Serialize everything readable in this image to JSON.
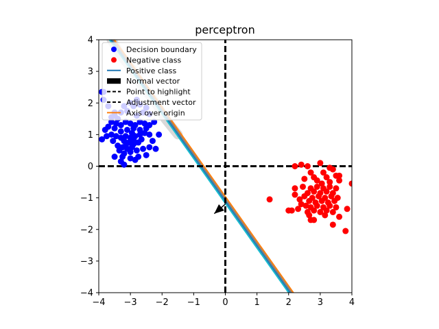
{
  "chart_data": {
    "type": "scatter",
    "title": "perceptron",
    "xlabel": "",
    "ylabel": "",
    "xlim": [
      -4,
      4
    ],
    "ylim": [
      -4,
      4
    ],
    "xticks": [
      -4,
      -3,
      -2,
      -1,
      0,
      1,
      2,
      3,
      4
    ],
    "yticks": [
      -4,
      -3,
      -2,
      -1,
      0,
      1,
      2,
      3,
      4
    ],
    "grid": false,
    "legend_position": "top-left",
    "legend": [
      {
        "label": "Decision boundary",
        "marker": "dot",
        "color": "#0000ff"
      },
      {
        "label": "Negative class",
        "marker": "dot",
        "color": "#ff0000"
      },
      {
        "label": "Positive class",
        "marker": "line",
        "color": "#1f77b4"
      },
      {
        "label": "Normal vector",
        "marker": "patch",
        "color": "#000000"
      },
      {
        "label": "Point to highlight",
        "marker": "dashed",
        "color": "#000000"
      },
      {
        "label": "Adjustment vector",
        "marker": "dashed",
        "color": "#000000"
      },
      {
        "label": "Axis over origin",
        "marker": "line",
        "color": "#ff7f0e"
      }
    ],
    "colors": {
      "blue": "#0000ff",
      "red": "#ff0000",
      "line_blue": "#1f77b4",
      "line_orange": "#ff7f0e",
      "line_teal": "#17becf",
      "line_grey": "#7f7f7f"
    },
    "series": [
      {
        "color": "#0000ff",
        "points": [
          [
            -3.9,
            2.35
          ],
          [
            -3.85,
            2.1
          ],
          [
            -3.7,
            1.9
          ],
          [
            -3.6,
            1.55
          ],
          [
            -3.5,
            1.6
          ],
          [
            -3.4,
            1.5
          ],
          [
            -3.3,
            1.7
          ],
          [
            -3.2,
            1.9
          ],
          [
            -3.1,
            1.75
          ],
          [
            -3.0,
            2.0
          ],
          [
            -2.9,
            1.9
          ],
          [
            -2.8,
            2.1
          ],
          [
            -2.7,
            1.95
          ],
          [
            -2.6,
            1.7
          ],
          [
            -2.5,
            1.85
          ],
          [
            -2.4,
            1.65
          ],
          [
            -2.8,
            1.6
          ],
          [
            -3.6,
            1.4
          ],
          [
            -3.45,
            1.35
          ],
          [
            -3.3,
            1.3
          ],
          [
            -3.15,
            1.4
          ],
          [
            -3.0,
            1.35
          ],
          [
            -2.85,
            1.3
          ],
          [
            -2.7,
            1.4
          ],
          [
            -2.55,
            1.35
          ],
          [
            -2.4,
            1.3
          ],
          [
            -2.25,
            1.4
          ],
          [
            -2.5,
            1.2
          ],
          [
            -2.7,
            1.15
          ],
          [
            -2.9,
            1.2
          ],
          [
            -3.1,
            1.15
          ],
          [
            -3.3,
            1.1
          ],
          [
            -3.5,
            1.2
          ],
          [
            -3.7,
            1.25
          ],
          [
            -3.8,
            1.15
          ],
          [
            -3.9,
            0.85
          ],
          [
            -3.75,
            0.95
          ],
          [
            -3.6,
            1.0
          ],
          [
            -3.45,
            0.95
          ],
          [
            -3.3,
            0.9
          ],
          [
            -3.15,
            0.95
          ],
          [
            -3.0,
            0.9
          ],
          [
            -2.85,
            0.95
          ],
          [
            -2.7,
            1.0
          ],
          [
            -2.55,
            1.05
          ],
          [
            -2.4,
            1.0
          ],
          [
            -2.1,
            1.0
          ],
          [
            -3.2,
            0.8
          ],
          [
            -3.05,
            0.75
          ],
          [
            -2.9,
            0.7
          ],
          [
            -2.75,
            0.75
          ],
          [
            -2.95,
            0.6
          ],
          [
            -3.1,
            0.55
          ],
          [
            -3.25,
            0.6
          ],
          [
            -3.35,
            0.5
          ],
          [
            -3.2,
            0.4
          ],
          [
            -3.0,
            0.45
          ],
          [
            -2.8,
            0.5
          ],
          [
            -2.6,
            0.55
          ],
          [
            -2.4,
            0.6
          ],
          [
            -2.2,
            0.55
          ],
          [
            -2.5,
            0.35
          ],
          [
            -2.75,
            0.3
          ],
          [
            -3.0,
            0.25
          ],
          [
            -3.25,
            0.3
          ],
          [
            -3.5,
            0.3
          ],
          [
            -3.3,
            0.15
          ],
          [
            -3.2,
            0.05
          ],
          [
            -2.85,
            0.2
          ],
          [
            -3.4,
            0.65
          ],
          [
            -3.55,
            0.8
          ],
          [
            -2.65,
            0.85
          ],
          [
            -2.3,
            0.8
          ],
          [
            -3.85,
            2.35
          ],
          [
            -3.5,
            1.7
          ],
          [
            -2.95,
            1.05
          ],
          [
            -3.15,
            0.65
          ],
          [
            -2.9,
            0.85
          ]
        ]
      },
      {
        "color": "#ff0000",
        "points": [
          [
            2.2,
            0.0
          ],
          [
            2.4,
            0.05
          ],
          [
            2.6,
            0.0
          ],
          [
            3.0,
            0.1
          ],
          [
            3.3,
            -0.05
          ],
          [
            3.4,
            -0.1
          ],
          [
            2.7,
            -0.2
          ],
          [
            3.1,
            -0.2
          ],
          [
            3.5,
            -0.3
          ],
          [
            2.8,
            -0.35
          ],
          [
            3.2,
            -0.35
          ],
          [
            2.5,
            -0.4
          ],
          [
            3.6,
            -0.45
          ],
          [
            2.9,
            -0.45
          ],
          [
            3.3,
            -0.5
          ],
          [
            4.0,
            -0.55
          ],
          [
            2.2,
            -0.7
          ],
          [
            2.45,
            -0.65
          ],
          [
            2.7,
            -0.7
          ],
          [
            2.9,
            -0.65
          ],
          [
            3.1,
            -0.7
          ],
          [
            3.3,
            -0.65
          ],
          [
            3.5,
            -0.7
          ],
          [
            2.6,
            -0.85
          ],
          [
            2.8,
            -0.8
          ],
          [
            3.0,
            -0.85
          ],
          [
            3.2,
            -0.8
          ],
          [
            3.4,
            -0.85
          ],
          [
            2.2,
            -0.9
          ],
          [
            2.5,
            -0.95
          ],
          [
            2.75,
            -1.0
          ],
          [
            2.95,
            -0.95
          ],
          [
            3.15,
            -1.0
          ],
          [
            3.35,
            -0.95
          ],
          [
            3.55,
            -1.0
          ],
          [
            2.65,
            -1.1
          ],
          [
            2.85,
            -1.15
          ],
          [
            3.05,
            -1.1
          ],
          [
            3.25,
            -1.15
          ],
          [
            3.45,
            -1.1
          ],
          [
            2.4,
            -1.2
          ],
          [
            2.55,
            -1.25
          ],
          [
            2.7,
            -1.3
          ],
          [
            2.9,
            -1.25
          ],
          [
            3.1,
            -1.3
          ],
          [
            3.3,
            -1.25
          ],
          [
            3.5,
            -1.3
          ],
          [
            2.8,
            -1.4
          ],
          [
            3.0,
            -1.45
          ],
          [
            3.2,
            -1.4
          ],
          [
            3.4,
            -1.45
          ],
          [
            2.6,
            -1.45
          ],
          [
            2.3,
            -1.35
          ],
          [
            3.85,
            -1.35
          ],
          [
            2.1,
            -1.4
          ],
          [
            3.6,
            -1.6
          ],
          [
            2.7,
            -1.7
          ],
          [
            2.8,
            -1.7
          ],
          [
            3.4,
            -1.85
          ],
          [
            3.8,
            -2.05
          ],
          [
            1.4,
            -1.05
          ],
          [
            2.0,
            -1.4
          ],
          [
            3.05,
            -0.55
          ],
          [
            2.35,
            -1.05
          ],
          [
            3.6,
            -0.3
          ],
          [
            2.65,
            -1.55
          ],
          [
            3.15,
            -1.55
          ]
        ]
      }
    ],
    "lines": [
      {
        "color": "#17becf",
        "width": 2,
        "points": [
          [
            -3.8,
            4.2
          ],
          [
            2.0,
            -4.0
          ]
        ]
      },
      {
        "color": "#1f77b4",
        "width": 2,
        "points": [
          [
            -3.75,
            4.2
          ],
          [
            2.05,
            -4.0
          ]
        ]
      },
      {
        "color": "#7f7f7f",
        "width": 2,
        "points": [
          [
            -3.7,
            4.2
          ],
          [
            2.1,
            -4.0
          ]
        ]
      },
      {
        "color": "#ff7f0e",
        "width": 2,
        "points": [
          [
            -3.65,
            4.2
          ],
          [
            2.15,
            -4.0
          ]
        ]
      }
    ],
    "grey_band": {
      "color": "#d9d9d9",
      "points": [
        [
          -3.6,
          4.0
        ],
        [
          -3.3,
          3.5
        ],
        [
          -2.9,
          3.0
        ],
        [
          -2.6,
          2.5
        ],
        [
          -2.2,
          2.0
        ],
        [
          -1.9,
          1.5
        ],
        [
          -1.5,
          1.0
        ]
      ]
    },
    "dashed_lines": [
      {
        "color": "#000000",
        "points": [
          [
            -4,
            0
          ],
          [
            4,
            0
          ]
        ]
      },
      {
        "color": "#000000",
        "points": [
          [
            0,
            -4
          ],
          [
            0,
            4
          ]
        ]
      }
    ],
    "arrow": {
      "color": "#000000",
      "from": [
        0,
        -1.2
      ],
      "to": [
        -0.35,
        -1.5
      ]
    }
  }
}
